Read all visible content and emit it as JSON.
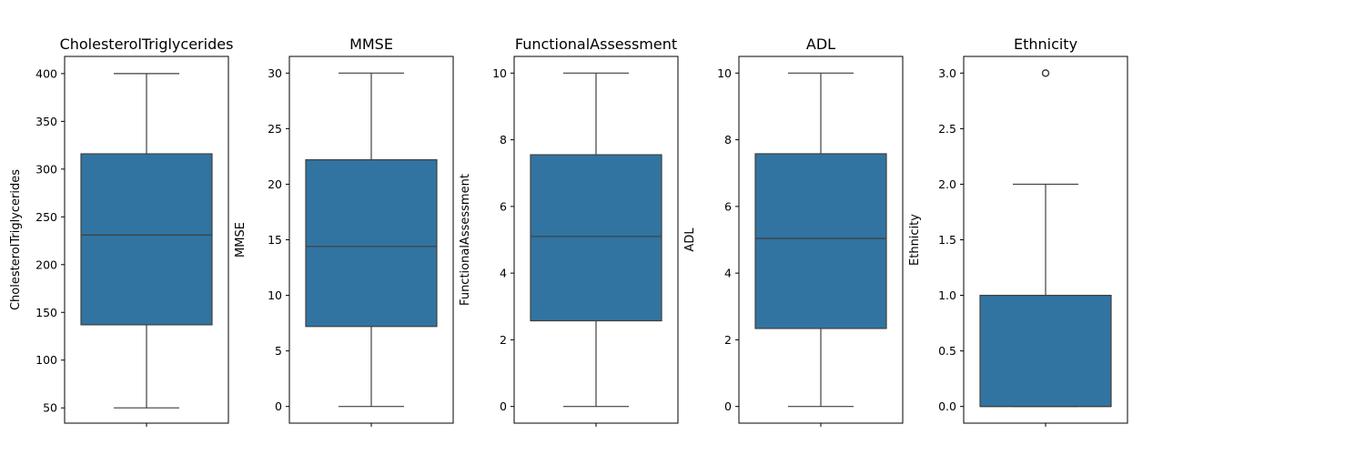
{
  "chart_data": [
    {
      "type": "box",
      "title": "CholesterolTriglycerides",
      "ylabel": "CholesterolTriglycerides",
      "ylim": [
        34,
        418
      ],
      "yticks": [
        50,
        100,
        150,
        200,
        250,
        300,
        350,
        400
      ],
      "box": {
        "whislo": 50,
        "q1": 137,
        "med": 231,
        "q3": 316,
        "whishi": 400
      },
      "fliers": []
    },
    {
      "type": "box",
      "title": "MMSE",
      "ylabel": "MMSE",
      "ylim": [
        -1.5,
        31.5
      ],
      "yticks": [
        0,
        5,
        10,
        15,
        20,
        25,
        30
      ],
      "box": {
        "whislo": 0,
        "q1": 7.2,
        "med": 14.4,
        "q3": 22.2,
        "whishi": 30
      },
      "fliers": []
    },
    {
      "type": "box",
      "title": "FunctionalAssessment",
      "ylabel": "FunctionalAssessment",
      "ylim": [
        -0.5,
        10.5
      ],
      "yticks": [
        0,
        2,
        4,
        6,
        8,
        10
      ],
      "box": {
        "whislo": 0,
        "q1": 2.57,
        "med": 5.1,
        "q3": 7.55,
        "whishi": 10
      },
      "fliers": []
    },
    {
      "type": "box",
      "title": "ADL",
      "ylabel": "ADL",
      "ylim": [
        -0.5,
        10.5
      ],
      "yticks": [
        0,
        2,
        4,
        6,
        8,
        10
      ],
      "box": {
        "whislo": 0,
        "q1": 2.34,
        "med": 5.04,
        "q3": 7.58,
        "whishi": 10
      },
      "fliers": []
    },
    {
      "type": "box",
      "title": "Ethnicity",
      "ylabel": "Ethnicity",
      "ylim": [
        -0.15,
        3.15
      ],
      "yticks": [
        0.0,
        0.5,
        1.0,
        1.5,
        2.0,
        2.5,
        3.0
      ],
      "tickDecimals": 1,
      "box": {
        "whislo": 0,
        "q1": 0,
        "med": 0,
        "q3": 1,
        "whishi": 2
      },
      "fliers": [
        3
      ]
    }
  ],
  "colors": {
    "box_fill": "#3274a1",
    "line": "#3f3f3f",
    "axis": "#000000"
  }
}
